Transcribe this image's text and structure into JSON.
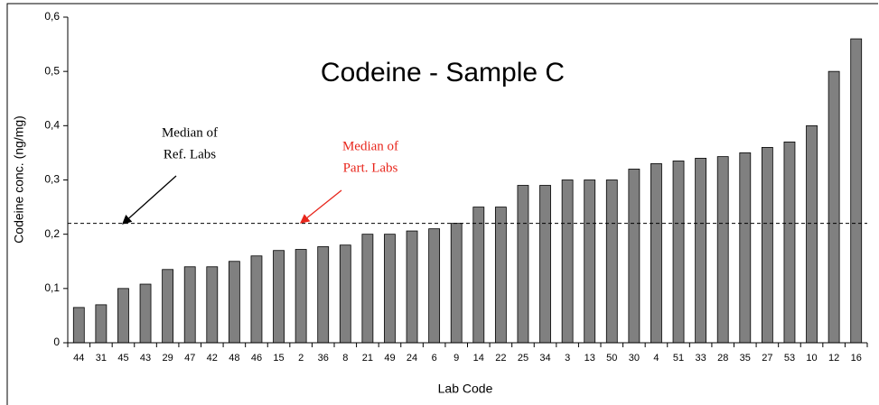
{
  "chart_data": {
    "type": "bar",
    "title": "Codeine - Sample C",
    "x_label": "Lab Code",
    "y_label": "Codeine conc. (ng/mg)",
    "categories": [
      "44",
      "31",
      "45",
      "43",
      "29",
      "47",
      "42",
      "48",
      "46",
      "15",
      "2",
      "36",
      "8",
      "21",
      "49",
      "24",
      "6",
      "9",
      "14",
      "22",
      "25",
      "34",
      "3",
      "13",
      "50",
      "30",
      "4",
      "51",
      "33",
      "28",
      "35",
      "27",
      "53",
      "10",
      "12",
      "16"
    ],
    "values": [
      0.065,
      0.07,
      0.1,
      0.108,
      0.135,
      0.14,
      0.14,
      0.15,
      0.16,
      0.17,
      0.172,
      0.177,
      0.18,
      0.2,
      0.2,
      0.206,
      0.21,
      0.22,
      0.25,
      0.25,
      0.29,
      0.29,
      0.3,
      0.3,
      0.3,
      0.32,
      0.33,
      0.335,
      0.34,
      0.343,
      0.35,
      0.36,
      0.37,
      0.4,
      0.5,
      0.56
    ],
    "color": "#808080",
    "ylim": [
      0,
      0.6
    ],
    "yticks": [
      0,
      {
        "value": 0.1,
        "label": "0,1"
      },
      {
        "value": 0.2,
        "label": "0,2"
      },
      {
        "value": 0.3,
        "label": "0,3"
      },
      {
        "value": 0.4,
        "label": "0,4"
      },
      {
        "value": 0.5,
        "label": "0,5"
      },
      {
        "value": 0.6,
        "label": "0,6"
      }
    ],
    "median_line": 0.22,
    "annotations": [
      {
        "lines": [
          "Median of",
          "Ref. Labs"
        ],
        "color": "#000000"
      },
      {
        "lines": [
          "Median of",
          "Part. Labs"
        ],
        "color": "#e8261c"
      }
    ]
  }
}
